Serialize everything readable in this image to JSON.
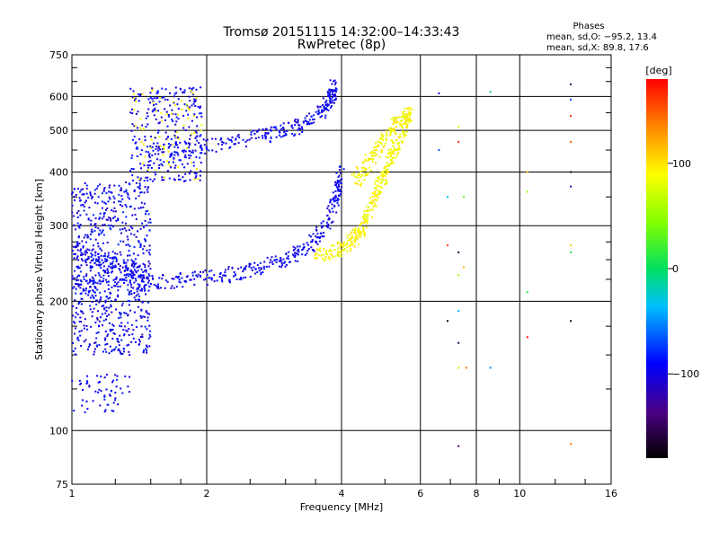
{
  "chart_data": {
    "type": "scatter",
    "title": "Tromsø 20151115 14:32:00–14:33:43",
    "subtitle": "RwPretec (8p)",
    "xlabel": "Frequency [MHz]",
    "ylabel": "Stationary phase Virtual Height [km]",
    "x_scale": "log2",
    "y_scale": "log",
    "xlim": [
      1,
      16
    ],
    "ylim": [
      75,
      750
    ],
    "x_ticks": [
      1,
      2,
      4,
      6,
      8,
      10,
      16
    ],
    "x_tick_labels": [
      "1",
      "2",
      "4",
      "6",
      "8",
      "10",
      "16"
    ],
    "y_ticks": [
      75,
      100,
      200,
      300,
      400,
      500,
      600,
      750
    ],
    "y_tick_labels": [
      "75",
      "100",
      "200",
      "300",
      "400",
      "500",
      "600",
      "750"
    ],
    "grid": true,
    "stats": {
      "heading": "Phases",
      "line_o": "mean, sd,O: −95.2, 13.4",
      "line_x": "mean, sd,X:  89.8, 17.6"
    },
    "colorbar": {
      "label": "[deg]",
      "range": [
        -180,
        180
      ],
      "ticks": [
        100,
        0,
        -100
      ],
      "tick_labels": [
        "100",
        "0",
        "−100"
      ]
    },
    "series": [
      {
        "color_phase": -95,
        "trace": [
          [
            1.0,
            215
          ],
          [
            1.2,
            220
          ],
          [
            1.5,
            220
          ],
          [
            1.8,
            225
          ],
          [
            2.2,
            230
          ],
          [
            2.6,
            238
          ],
          [
            3.0,
            250
          ],
          [
            3.4,
            270
          ],
          [
            3.7,
            300
          ],
          [
            3.9,
            350
          ],
          [
            4.0,
            400
          ]
        ]
      },
      {
        "color_phase": -95,
        "trace": [
          [
            1.0,
            265
          ],
          [
            1.15,
            250
          ],
          [
            1.3,
            240
          ],
          [
            1.45,
            235
          ]
        ]
      },
      {
        "color_phase": -95,
        "trace": [
          [
            1.5,
            450
          ],
          [
            1.9,
            455
          ],
          [
            2.3,
            470
          ],
          [
            2.8,
            490
          ],
          [
            3.2,
            510
          ],
          [
            3.6,
            550
          ],
          [
            3.8,
            600
          ],
          [
            3.85,
            640
          ]
        ]
      },
      {
        "color_phase": 90,
        "trace": [
          [
            3.5,
            255
          ],
          [
            3.9,
            262
          ],
          [
            4.2,
            275
          ],
          [
            4.4,
            290
          ],
          [
            4.6,
            320
          ],
          [
            4.8,
            360
          ],
          [
            5.0,
            400
          ],
          [
            5.2,
            440
          ],
          [
            5.5,
            500
          ],
          [
            5.7,
            560
          ]
        ]
      },
      {
        "color_phase": 90,
        "trace": [
          [
            4.3,
            380
          ],
          [
            4.6,
            420
          ],
          [
            4.9,
            470
          ],
          [
            5.3,
            520
          ],
          [
            5.7,
            540
          ]
        ]
      }
    ],
    "scattered_points": [
      [
        7.3,
        510
      ],
      [
        7.3,
        470
      ],
      [
        7.3,
        260
      ],
      [
        7.3,
        230
      ],
      [
        7.3,
        190
      ],
      [
        7.3,
        160
      ],
      [
        7.3,
        140
      ],
      [
        7.3,
        92
      ],
      [
        6.9,
        350
      ],
      [
        6.9,
        270
      ],
      [
        6.9,
        180
      ],
      [
        6.6,
        450
      ],
      [
        6.6,
        610
      ],
      [
        7.5,
        350
      ],
      [
        7.5,
        240
      ],
      [
        7.6,
        140
      ],
      [
        8.6,
        140
      ],
      [
        8.6,
        615
      ],
      [
        10.4,
        400
      ],
      [
        10.4,
        210
      ],
      [
        10.4,
        165
      ],
      [
        10.4,
        360
      ],
      [
        13.0,
        640
      ],
      [
        13.0,
        590
      ],
      [
        13.0,
        540
      ],
      [
        13.0,
        470
      ],
      [
        13.0,
        400
      ],
      [
        13.0,
        370
      ],
      [
        13.0,
        270
      ],
      [
        13.0,
        260
      ],
      [
        13.0,
        180
      ],
      [
        13.0,
        93
      ]
    ]
  }
}
